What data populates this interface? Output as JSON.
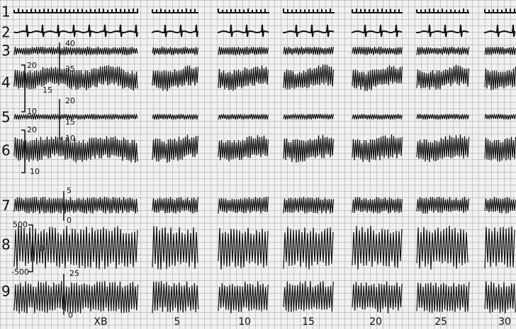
{
  "channels": [
    "1",
    "2",
    "3",
    "4",
    "5",
    "6",
    "7",
    "8",
    "9"
  ],
  "scale_labels": [
    "40",
    "35",
    "20",
    "15",
    "20",
    "10",
    "15",
    "20",
    "10",
    "10",
    "5",
    "0",
    "500",
    "0",
    "-500",
    "25",
    "0"
  ],
  "time_labels": [
    "XB",
    "5",
    "10",
    "15",
    "20",
    "25",
    "30"
  ]
}
